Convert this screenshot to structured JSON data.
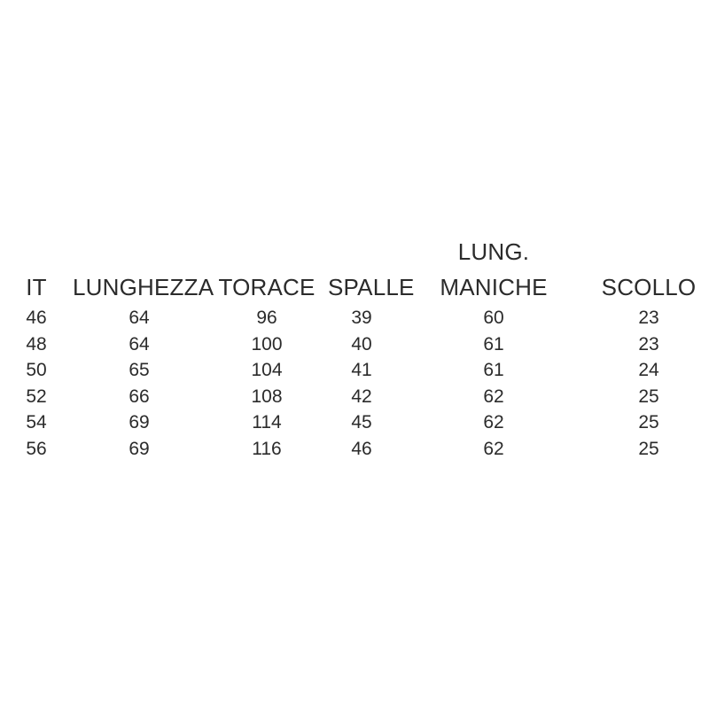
{
  "page": {
    "background": "#ffffff",
    "text_color": "#2b2b2b"
  },
  "table": {
    "columns": [
      {
        "lines": [
          "IT"
        ]
      },
      {
        "lines": [
          "LUNGHEZZA"
        ]
      },
      {
        "lines": [
          "TORACE"
        ]
      },
      {
        "lines": [
          "SPALLE"
        ]
      },
      {
        "lines": [
          "LUNG.",
          "MANICHE"
        ]
      },
      {
        "lines": [
          "SCOLLO"
        ]
      }
    ],
    "rows": [
      [
        "46",
        "64",
        "96",
        "39",
        "60",
        "23"
      ],
      [
        "48",
        "64",
        "100",
        "40",
        "61",
        "23"
      ],
      [
        "50",
        "65",
        "104",
        "41",
        "61",
        "24"
      ],
      [
        "52",
        "66",
        "108",
        "42",
        "62",
        "25"
      ],
      [
        "54",
        "69",
        "114",
        "45",
        "62",
        "25"
      ],
      [
        "56",
        "69",
        "116",
        "46",
        "62",
        "25"
      ]
    ]
  },
  "chart_data": {
    "type": "table",
    "title": "",
    "columns": [
      "IT",
      "LUNGHEZZA",
      "TORACE",
      "SPALLE",
      "LUNG. MANICHE",
      "SCOLLO"
    ],
    "rows": [
      [
        46,
        64,
        96,
        39,
        60,
        23
      ],
      [
        48,
        64,
        100,
        40,
        61,
        23
      ],
      [
        50,
        65,
        104,
        41,
        61,
        24
      ],
      [
        52,
        66,
        108,
        42,
        62,
        25
      ],
      [
        54,
        69,
        114,
        45,
        62,
        25
      ],
      [
        56,
        69,
        116,
        46,
        62,
        25
      ]
    ]
  }
}
